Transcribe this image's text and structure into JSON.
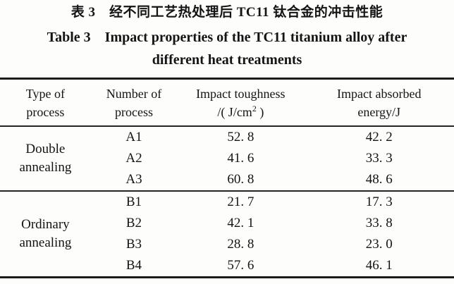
{
  "titles": {
    "chinese": "表 3 经不同工艺热处理后 TC11 钛合金的冲击性能",
    "english_line1": "Table 3 Impact properties of the TC11 titanium alloy after",
    "english_line2": "different heat treatments"
  },
  "table": {
    "headers": [
      {
        "line1": "Type of",
        "line2": "process"
      },
      {
        "line1": "Number of",
        "line2": "process"
      },
      {
        "line1": "Impact toughness",
        "line2_prefix": "/( J/cm",
        "line2_sup": "2",
        "line2_suffix": " )"
      },
      {
        "line1": "Impact absorbed",
        "line2": "energy/J"
      }
    ],
    "groups": [
      {
        "type_line1": "Double",
        "type_line2": "annealing",
        "rows": [
          {
            "number": "A1",
            "toughness": "52. 8",
            "energy": "42. 2"
          },
          {
            "number": "A2",
            "toughness": "41. 6",
            "energy": "33. 3"
          },
          {
            "number": "A3",
            "toughness": "60. 8",
            "energy": "48. 6"
          }
        ]
      },
      {
        "type_line1": "Ordinary",
        "type_line2": "annealing",
        "rows": [
          {
            "number": "B1",
            "toughness": "21. 7",
            "energy": "17. 3"
          },
          {
            "number": "B2",
            "toughness": "42. 1",
            "energy": "33. 8"
          },
          {
            "number": "B3",
            "toughness": "28. 8",
            "energy": "23. 0"
          },
          {
            "number": "B4",
            "toughness": "57. 6",
            "energy": "46. 1"
          }
        ]
      }
    ]
  },
  "chart_data": {
    "type": "table",
    "title": "Impact properties of the TC11 titanium alloy after different heat treatments",
    "columns": [
      "Type of process",
      "Number of process",
      "Impact toughness /(J/cm2)",
      "Impact absorbed energy/J"
    ],
    "rows": [
      [
        "Double annealing",
        "A1",
        52.8,
        42.2
      ],
      [
        "Double annealing",
        "A2",
        41.6,
        33.3
      ],
      [
        "Double annealing",
        "A3",
        60.8,
        48.6
      ],
      [
        "Ordinary annealing",
        "B1",
        21.7,
        17.3
      ],
      [
        "Ordinary annealing",
        "B2",
        42.1,
        33.8
      ],
      [
        "Ordinary annealing",
        "B3",
        28.8,
        23.0
      ],
      [
        "Ordinary annealing",
        "B4",
        57.6,
        46.1
      ]
    ]
  },
  "colors": {
    "background": "#fdfdfc",
    "text": "#141414",
    "rule_thick": "#1b1b1b",
    "rule_thin": "#242424"
  }
}
